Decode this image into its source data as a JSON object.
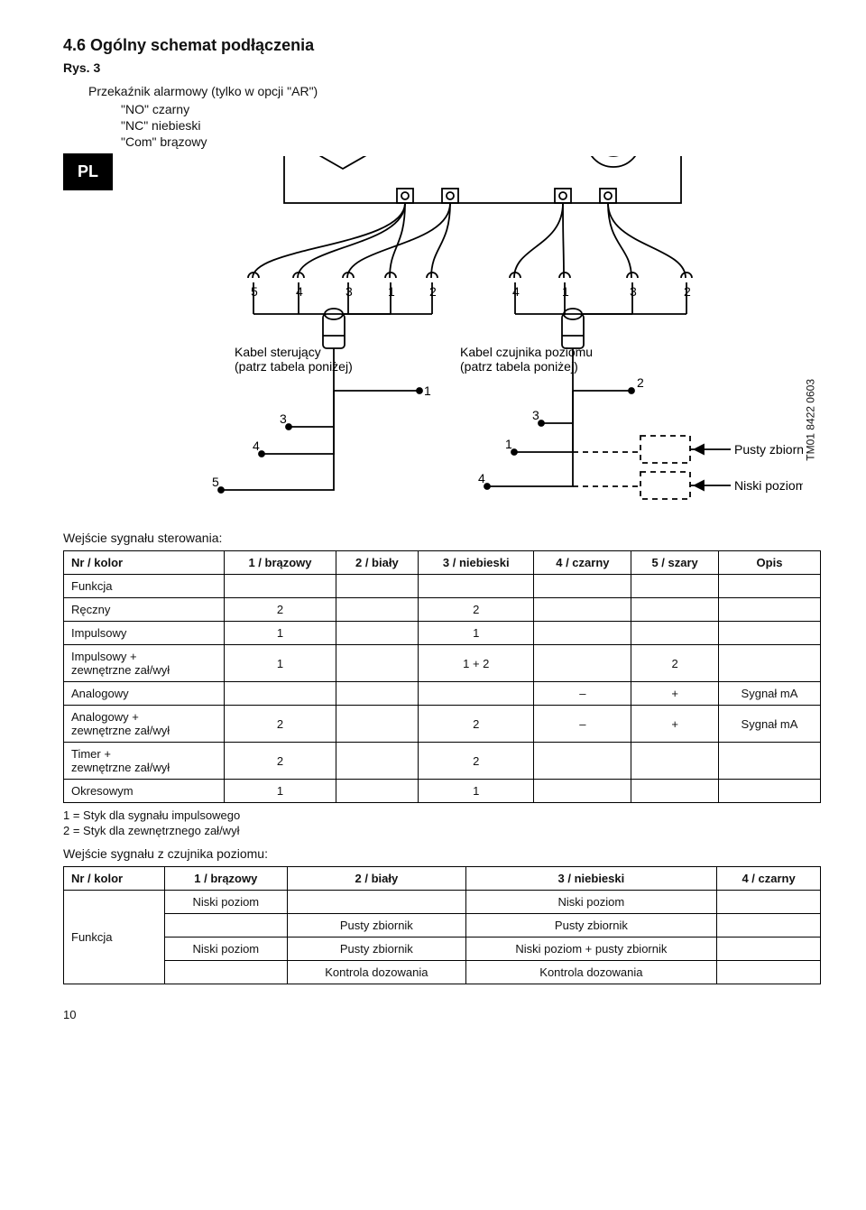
{
  "lang_tab": "PL",
  "heading": "4.6 Ogólny schemat podłączenia",
  "fig_label": "Rys. 3",
  "relay_line": "Przekaźnik alarmowy (tylko w opcji \"AR\")",
  "wires": {
    "no": "\"NO\" czarny",
    "nc": "\"NC\" niebieski",
    "com": "\"Com\" brązowy"
  },
  "diagram": {
    "control_cable_label_l1": "Kabel sterujący",
    "control_cable_label_l2": "(patrz tabela poniżej)",
    "level_cable_label_l1": "Kabel czujnika poziomu",
    "level_cable_label_l2": "(patrz tabela poniżej)",
    "empty_tank": "Pusty zbiornik",
    "low_level": "Niski poziom",
    "top_left_nums": [
      "5",
      "4",
      "3",
      "1",
      "2"
    ],
    "top_right_nums": [
      "4",
      "1",
      "3",
      "2"
    ],
    "left_branch_nums": [
      "1",
      "3",
      "4",
      "5"
    ],
    "right_branch_nums": [
      "2",
      "3",
      "1",
      "4"
    ]
  },
  "side_code": "TM01 8422 0603",
  "table1_caption": "Wejście sygnału sterowania:",
  "table1": {
    "headers": [
      "Nr / kolor",
      "1 / brązowy",
      "2 / biały",
      "3 / niebieski",
      "4 / czarny",
      "5 / szary",
      "Opis"
    ],
    "rows": [
      {
        "label": "Funkcja",
        "cells": [
          "",
          "",
          "",
          "",
          "",
          ""
        ]
      },
      {
        "label": "Ręczny",
        "cells": [
          "2",
          "",
          "2",
          "",
          "",
          ""
        ]
      },
      {
        "label": "Impulsowy",
        "cells": [
          "1",
          "",
          "1",
          "",
          "",
          ""
        ]
      },
      {
        "label": "Impulsowy +\nzewnętrzne zał/wył",
        "cells": [
          "1",
          "",
          "1 + 2",
          "",
          "2",
          ""
        ]
      },
      {
        "label": "Analogowy",
        "cells": [
          "",
          "",
          "",
          "–",
          "+",
          "Sygnał mA"
        ]
      },
      {
        "label": "Analogowy +\nzewnętrzne zał/wył",
        "cells": [
          "2",
          "",
          "2",
          "–",
          "+",
          "Sygnał mA"
        ]
      },
      {
        "label": "Timer +\nzewnętrzne zał/wył",
        "cells": [
          "2",
          "",
          "2",
          "",
          "",
          ""
        ]
      },
      {
        "label": "Okresowym",
        "cells": [
          "1",
          "",
          "1",
          "",
          "",
          ""
        ]
      }
    ]
  },
  "legend1": "1 = Styk dla sygnału impulsowego",
  "legend2": "2 = Styk dla zewnętrznego zał/wył",
  "table2_caption": "Wejście sygnału z czujnika poziomu:",
  "table2": {
    "headers": [
      "Nr / kolor",
      "1 / brązowy",
      "2 / biały",
      "3 / niebieski",
      "4 / czarny"
    ],
    "side": "Funkcja",
    "rows": [
      [
        "Niski poziom",
        "",
        "Niski poziom",
        ""
      ],
      [
        "",
        "Pusty zbiornik",
        "Pusty zbiornik",
        ""
      ],
      [
        "Niski poziom",
        "Pusty zbiornik",
        "Niski poziom + pusty zbiornik",
        ""
      ],
      [
        "",
        "Kontrola dozowania",
        "Kontrola dozowania",
        ""
      ]
    ]
  },
  "page_number": "10"
}
